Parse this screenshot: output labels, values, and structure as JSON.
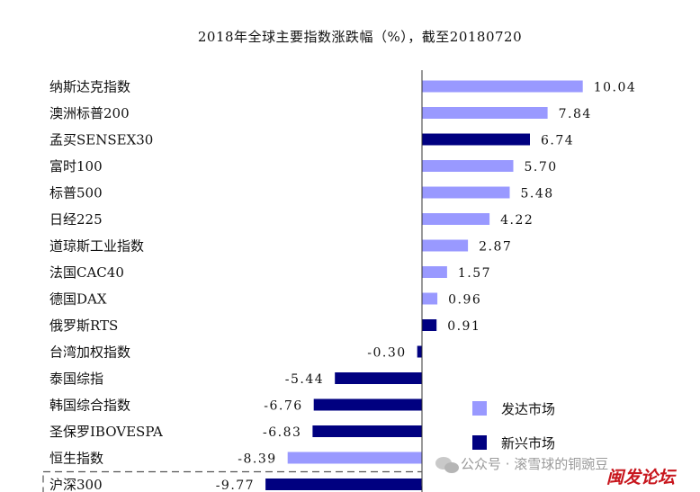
{
  "chart_data": {
    "type": "bar",
    "orientation": "horizontal",
    "title": "2018年全球主要指数涨跌幅（%），截至20180720",
    "xlabel": "",
    "ylabel": "",
    "xlim": [
      -10.5,
      11.5
    ],
    "categories": [
      "纳斯达克指数",
      "澳洲标普200",
      "孟买SENSEX30",
      "富时100",
      "标普500",
      "日经225",
      "道琼斯工业指数",
      "法国CAC40",
      "德国DAX",
      "俄罗斯RTS",
      "台湾加权指数",
      "泰国综指",
      "韩国综合指数",
      "圣保罗IBOVESPA",
      "恒生指数",
      "沪深300"
    ],
    "values": [
      10.04,
      7.84,
      6.74,
      5.7,
      5.48,
      4.22,
      2.87,
      1.57,
      0.96,
      0.91,
      -0.3,
      -5.44,
      -6.76,
      -6.83,
      -8.39,
      -9.77
    ],
    "value_labels": [
      "10.04",
      "7.84",
      "6.74",
      "5.70",
      "5.48",
      "4.22",
      "2.87",
      "1.57",
      "0.96",
      "0.91",
      "-0.30",
      "-5.44",
      "-6.76",
      "-6.83",
      "-8.39",
      "-9.77"
    ],
    "groups": [
      "发达市场",
      "发达市场",
      "新兴市场",
      "发达市场",
      "发达市场",
      "发达市场",
      "发达市场",
      "发达市场",
      "发达市场",
      "新兴市场",
      "新兴市场",
      "新兴市场",
      "新兴市场",
      "新兴市场",
      "发达市场",
      "新兴市场"
    ],
    "series": [
      {
        "name": "发达市场",
        "color": "#9999ff"
      },
      {
        "name": "新兴市场",
        "color": "#000080"
      }
    ],
    "legend_position": "bottom-right",
    "grid": false,
    "highlighted_category": "沪深300"
  },
  "watermark": {
    "text": "公众号 · 滚雪球的铜豌豆",
    "stamp": "闽发论坛"
  }
}
